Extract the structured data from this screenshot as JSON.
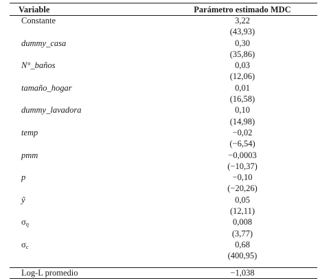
{
  "header": {
    "col_variable": "Variable",
    "col_estimate": "Parámetro estimado MDC"
  },
  "rows": [
    {
      "name": "Constante",
      "value": "3,22",
      "tstat": "(43,93)"
    },
    {
      "name": "dummy_casa",
      "value": "0,30",
      "tstat": "(35,86)"
    },
    {
      "name": "N°_baños",
      "value": "0,03",
      "tstat": "(12,06)"
    },
    {
      "name": "tamaño_hogar",
      "value": "0,01",
      "tstat": "(16,58)"
    },
    {
      "name": "dummy_lavadora",
      "value": "0,10",
      "tstat": "(14,98)"
    },
    {
      "name": "temp",
      "value": "−0,02",
      "tstat": "(−6,54)"
    },
    {
      "name": "pmm",
      "value": "−0,0003",
      "tstat": "(−10,37)"
    },
    {
      "name": "p",
      "value": "−0,10",
      "tstat": "(−20,26)"
    },
    {
      "name": "ỹ",
      "value": "0,05",
      "tstat": "(12,11)"
    },
    {
      "name_base": "σ",
      "name_sub": "η",
      "value": "0,008",
      "tstat": "(3,77)"
    },
    {
      "name_base": "σ",
      "name_sub": "c",
      "value": "0,68",
      "tstat": "(400,95)"
    }
  ],
  "footer": {
    "name": "Log-L promedio",
    "value": "−1,038"
  }
}
